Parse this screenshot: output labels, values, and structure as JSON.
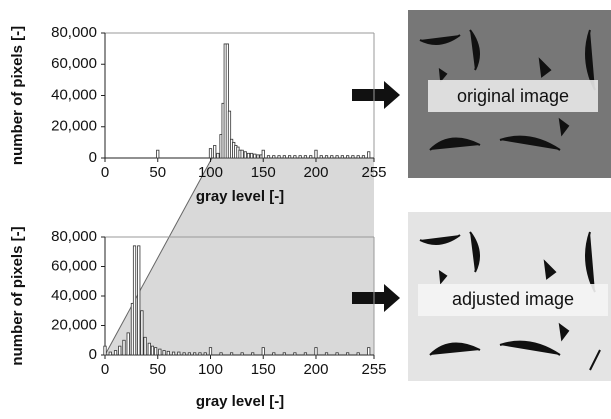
{
  "chart_data": [
    {
      "type": "bar",
      "ylabel": "number of pixels [-]",
      "xlabel": "gray level [-]",
      "color": "#333333",
      "x": [
        50,
        100,
        104,
        107,
        110,
        112,
        114,
        116,
        118,
        120,
        122,
        124,
        126,
        128,
        130,
        133,
        136,
        139,
        142,
        145,
        148,
        150,
        155,
        160,
        165,
        170,
        175,
        180,
        185,
        190,
        195,
        200,
        205,
        210,
        215,
        220,
        225,
        230,
        235,
        240,
        245,
        250
      ],
      "values": [
        5000,
        6000,
        8000,
        3000,
        15000,
        35000,
        73000,
        73000,
        30000,
        12000,
        10000,
        8000,
        7000,
        5000,
        5000,
        4000,
        3000,
        3000,
        2500,
        2000,
        2000,
        5000,
        1500,
        1500,
        1500,
        1500,
        1500,
        1500,
        1500,
        1500,
        1500,
        5000,
        1500,
        1500,
        1500,
        1500,
        1500,
        1500,
        1500,
        1500,
        1500,
        4000
      ],
      "xlim": [
        0,
        255
      ],
      "ylim": [
        0,
        80000
      ],
      "xticks": [
        0,
        50,
        100,
        150,
        200,
        255
      ],
      "yticks": [
        0,
        {
          "value": 20000,
          "label": "20,000"
        },
        {
          "value": 40000,
          "label": "40,000"
        },
        {
          "value": 60000,
          "label": "60,000"
        },
        {
          "value": 80000,
          "label": "80,000"
        }
      ]
    },
    {
      "type": "bar",
      "ylabel": "number of pixels [-]",
      "xlabel": "gray level [-]",
      "color": "#333333",
      "x": [
        0,
        5,
        10,
        14,
        18,
        22,
        26,
        28,
        32,
        35,
        38,
        42,
        45,
        48,
        52,
        56,
        60,
        65,
        70,
        75,
        80,
        85,
        90,
        95,
        100,
        110,
        120,
        130,
        140,
        150,
        160,
        170,
        180,
        190,
        200,
        210,
        220,
        230,
        240,
        250
      ],
      "values": [
        6000,
        2000,
        3000,
        6000,
        10000,
        15000,
        35000,
        74000,
        74000,
        30000,
        12000,
        8000,
        6000,
        5000,
        4000,
        3000,
        2500,
        2000,
        2000,
        1500,
        1500,
        1500,
        1500,
        1500,
        5000,
        1500,
        1500,
        1500,
        1500,
        5000,
        1500,
        1500,
        1500,
        1500,
        5000,
        1500,
        1500,
        1500,
        1500,
        5000
      ],
      "xlim": [
        0,
        255
      ],
      "ylim": [
        0,
        80000
      ],
      "xticks": [
        0,
        50,
        100,
        150,
        200,
        255
      ],
      "yticks": [
        0,
        {
          "value": 20000,
          "label": "20,000"
        },
        {
          "value": 40000,
          "label": "40,000"
        },
        {
          "value": 60000,
          "label": "60,000"
        },
        {
          "value": 80000,
          "label": "80,000"
        }
      ]
    }
  ],
  "images": [
    {
      "label": "original image"
    },
    {
      "label": "adjusted image"
    }
  ]
}
